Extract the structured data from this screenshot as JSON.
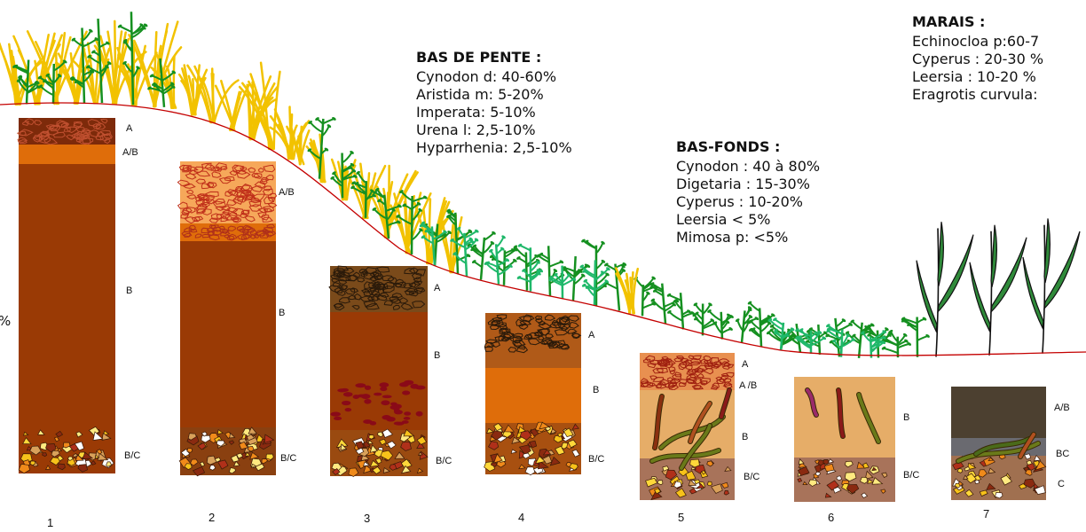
{
  "vegetation": {
    "bas_de_pente": {
      "title": "BAS DE PENTE :",
      "lines": [
        "Cynodon d: 40-60%",
        "Aristida m: 5-20%",
        "Imperata: 5-10%",
        "Urena l: 2,5-10%",
        "Hyparrhenia: 2,5-10%"
      ]
    },
    "bas_fonds": {
      "title": "BAS-FONDS :",
      "lines": [
        "Cynodon : 40 à 80%",
        "Digetaria : 15-30%",
        "Cyperus : 10-20%",
        "Leersia < 5%",
        "Mimosa p: <5%"
      ]
    },
    "marais": {
      "title": "MARAIS :",
      "lines": [
        "Echinocloa p:60-7",
        "Cyperus : 20-30 %",
        "Leersia : 10-20 %",
        "Eragrotis curvula:"
      ]
    }
  },
  "left_fragment": "%",
  "profiles": [
    {
      "number": "1",
      "horizons": [
        "A",
        "A/B",
        "B",
        "B/C"
      ]
    },
    {
      "number": "2",
      "horizons": [
        "A/B",
        "B",
        "B/C"
      ]
    },
    {
      "number": "3",
      "horizons": [
        "A",
        "B",
        "B/C"
      ]
    },
    {
      "number": "4",
      "horizons": [
        "A",
        "B",
        "B/C"
      ]
    },
    {
      "number": "5",
      "horizons": [
        "A",
        "A /B",
        "B",
        "B/C"
      ]
    },
    {
      "number": "6",
      "horizons": [
        "B",
        "B/C"
      ]
    },
    {
      "number": "7",
      "horizons": [
        "A/B",
        "BC",
        "C"
      ]
    }
  ],
  "colors": {
    "slope_line": "#c40000",
    "dark_brown": "#9a3a05",
    "orange": "#df6d0a",
    "light_orange": "#f6a85a",
    "tan": "#e6ad68",
    "gravel_base": "#a8735a",
    "grass_green": "#159020",
    "grass_yellow": "#f2c200",
    "marsh_top": "#4c4030"
  }
}
